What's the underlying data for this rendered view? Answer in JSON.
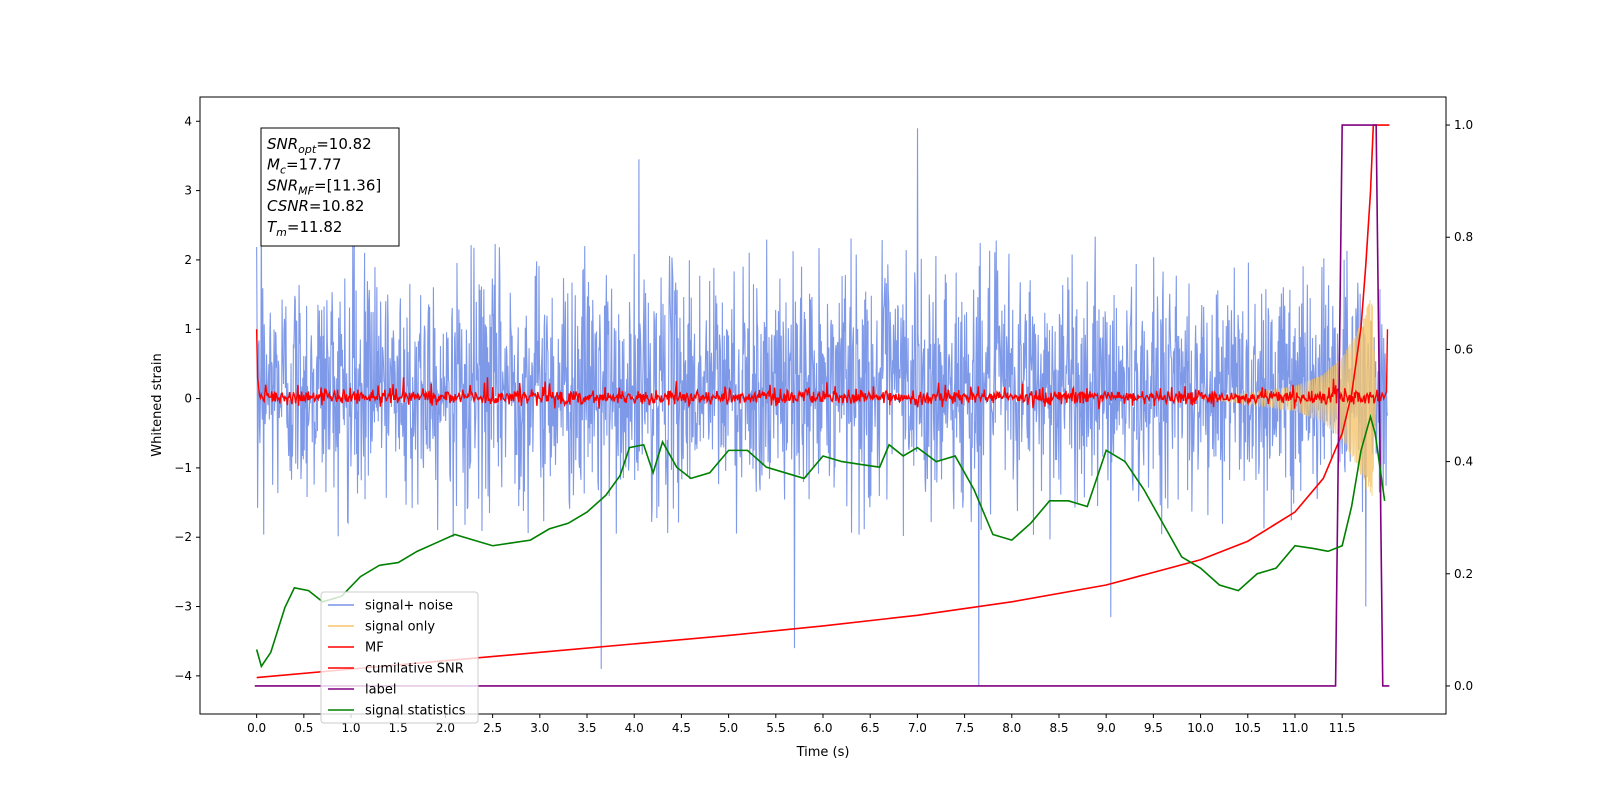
{
  "chart_data": {
    "type": "line",
    "title": "",
    "xlabel": "Time (s)",
    "ylabel": "Whitened strain",
    "xlim": [
      -0.6,
      12.6
    ],
    "ylim": [
      -4.55,
      4.35
    ],
    "y2lim": [
      -0.05,
      1.05
    ],
    "x_ticks": [
      0.0,
      0.5,
      1.0,
      1.5,
      2.0,
      2.5,
      3.0,
      3.5,
      4.0,
      4.5,
      5.0,
      5.5,
      6.0,
      6.5,
      7.0,
      7.5,
      8.0,
      8.5,
      9.0,
      9.5,
      10.0,
      10.5,
      11.0,
      11.5
    ],
    "x_tick_labels": [
      "0.0",
      "0.5",
      "1.0",
      "1.5",
      "2.0",
      "2.5",
      "3.0",
      "3.5",
      "4.0",
      "4.5",
      "5.0",
      "5.5",
      "6.0",
      "6.5",
      "7.0",
      "7.5",
      "8.0",
      "8.5",
      "9.0",
      "9.5",
      "10.0",
      "10.5",
      "11.0",
      "11.5"
    ],
    "y_ticks": [
      -4,
      -3,
      -2,
      -1,
      0,
      1,
      2,
      3,
      4
    ],
    "y_tick_labels": [
      "−4",
      "−3",
      "−2",
      "−1",
      "0",
      "1",
      "2",
      "3",
      "4"
    ],
    "y2_ticks": [
      0.0,
      0.2,
      0.4,
      0.6,
      0.8,
      1.0
    ],
    "y2_tick_labels": [
      "0.0",
      "0.2",
      "0.4",
      "0.6",
      "0.8",
      "1.0"
    ],
    "grid": false,
    "legend_position": "lower-left",
    "annotation": {
      "lines": [
        {
          "sym": "SNR",
          "sub": "opt",
          "val": "=10.82"
        },
        {
          "sym": "M",
          "sub": "c",
          "val": "=17.77"
        },
        {
          "sym": "SNR",
          "sub": "MF",
          "val": "=[11.36]"
        },
        {
          "sym": "CSNR",
          "sub": "",
          "val": "=10.82"
        },
        {
          "sym": "T",
          "sub": "m",
          "val": "=11.82"
        }
      ]
    },
    "series": [
      {
        "name": "signal+ noise",
        "axis": "left",
        "color": "#7893e8",
        "description": "dense noise spanning roughly -2 to +2.4 with spikes, x from 0.0 to 11.98",
        "typical_range": [
          -2.0,
          2.4
        ],
        "spikes": [
          [
            0.05,
            2.9
          ],
          [
            4.05,
            3.45
          ],
          [
            7.0,
            3.9
          ],
          [
            5.7,
            -3.6
          ],
          [
            7.65,
            -4.15
          ],
          [
            3.65,
            -3.9
          ],
          [
            9.05,
            -3.15
          ],
          [
            11.75,
            -3.0
          ]
        ]
      },
      {
        "name": "signal only",
        "axis": "left",
        "color": "#f5c56b",
        "description": "chirp growing near coalescence",
        "envelope": [
          [
            10.0,
            0.0
          ],
          [
            10.5,
            0.08
          ],
          [
            11.0,
            0.18
          ],
          [
            11.3,
            0.35
          ],
          [
            11.5,
            0.6
          ],
          [
            11.65,
            0.95
          ],
          [
            11.75,
            1.3
          ],
          [
            11.82,
            1.5
          ],
          [
            11.86,
            0.0
          ]
        ]
      },
      {
        "name": "MF",
        "axis": "left",
        "color": "#ff0000",
        "description": "matched filter output, small fluctuations near 0 (about -0.1 to +0.3) from 0.0 to 11.98, starting at 1.0",
        "start_value": 1.0,
        "end_value": 1.0
      },
      {
        "name": "cumilative SNR",
        "axis": "right",
        "color": "#ff0000",
        "x": [
          0.0,
          1.0,
          2.0,
          3.0,
          4.0,
          5.0,
          6.0,
          7.0,
          8.0,
          9.0,
          10.0,
          10.5,
          11.0,
          11.3,
          11.5,
          11.6,
          11.7,
          11.75,
          11.8,
          11.83,
          12.0
        ],
        "y": [
          0.015,
          0.03,
          0.045,
          0.06,
          0.075,
          0.09,
          0.107,
          0.126,
          0.15,
          0.18,
          0.225,
          0.258,
          0.31,
          0.37,
          0.45,
          0.52,
          0.64,
          0.75,
          0.88,
          1.0,
          1.0
        ]
      },
      {
        "name": "label",
        "axis": "right",
        "color": "#800080",
        "x": [
          -0.02,
          11.43,
          11.5,
          11.86,
          11.93,
          12.0
        ],
        "y": [
          0.0,
          0.0,
          1.0,
          1.0,
          0.0,
          0.0
        ]
      },
      {
        "name": "signal statistics",
        "axis": "right",
        "color": "#008000",
        "x": [
          0.0,
          0.05,
          0.15,
          0.3,
          0.4,
          0.55,
          0.7,
          0.9,
          1.1,
          1.3,
          1.5,
          1.7,
          1.9,
          2.1,
          2.3,
          2.5,
          2.7,
          2.9,
          3.1,
          3.3,
          3.5,
          3.7,
          3.85,
          3.95,
          4.1,
          4.2,
          4.3,
          4.45,
          4.6,
          4.8,
          5.0,
          5.2,
          5.4,
          5.6,
          5.8,
          6.0,
          6.2,
          6.4,
          6.6,
          6.7,
          6.85,
          7.0,
          7.2,
          7.4,
          7.6,
          7.8,
          8.0,
          8.2,
          8.4,
          8.6,
          8.8,
          9.0,
          9.2,
          9.4,
          9.6,
          9.8,
          10.0,
          10.2,
          10.4,
          10.6,
          10.8,
          11.0,
          11.2,
          11.35,
          11.5,
          11.6,
          11.7,
          11.8,
          11.85,
          11.95
        ],
        "y": [
          0.065,
          0.035,
          0.06,
          0.14,
          0.175,
          0.17,
          0.15,
          0.16,
          0.195,
          0.215,
          0.22,
          0.24,
          0.255,
          0.27,
          0.26,
          0.25,
          0.255,
          0.26,
          0.28,
          0.29,
          0.31,
          0.34,
          0.375,
          0.425,
          0.43,
          0.38,
          0.435,
          0.39,
          0.37,
          0.38,
          0.42,
          0.42,
          0.39,
          0.38,
          0.37,
          0.41,
          0.4,
          0.395,
          0.39,
          0.43,
          0.41,
          0.425,
          0.4,
          0.41,
          0.35,
          0.27,
          0.26,
          0.29,
          0.33,
          0.33,
          0.32,
          0.42,
          0.4,
          0.35,
          0.29,
          0.23,
          0.21,
          0.18,
          0.17,
          0.2,
          0.21,
          0.25,
          0.245,
          0.24,
          0.25,
          0.32,
          0.42,
          0.48,
          0.45,
          0.33
        ]
      }
    ]
  }
}
